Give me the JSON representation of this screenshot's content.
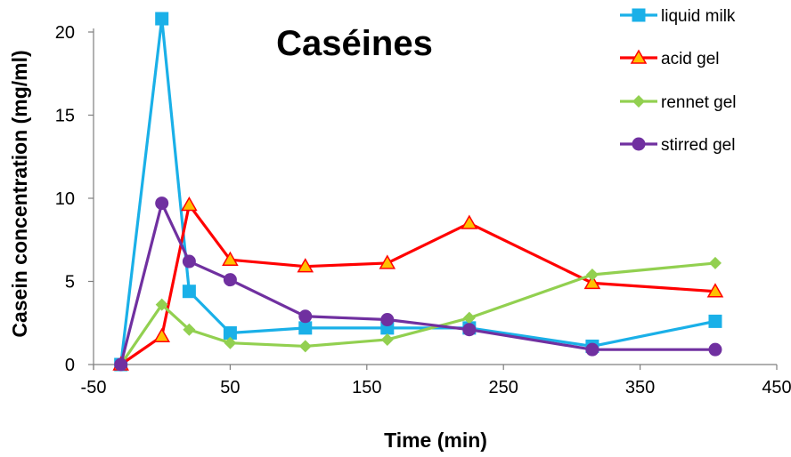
{
  "chart_data": {
    "type": "line",
    "title": "Caséines",
    "xlabel": "Time (min)",
    "ylabel": "Casein concentration (mg/ml)",
    "xlim": [
      -50,
      450
    ],
    "ylim": [
      0,
      21
    ],
    "xticks": [
      -50,
      50,
      150,
      250,
      350,
      450
    ],
    "xtick_labels": [
      "-50",
      "50",
      "150",
      "250",
      "350",
      "450"
    ],
    "yticks": [
      0,
      5,
      10,
      15,
      20
    ],
    "ytick_labels": [
      "0",
      "5",
      "10",
      "15",
      "20"
    ],
    "grid": false,
    "legend_position": "top-right",
    "series": [
      {
        "name": "liquid milk",
        "color": "#1AB0E8",
        "marker": "square",
        "x": [
          -30,
          0,
          20,
          50,
          105,
          165,
          225,
          315,
          405
        ],
        "y": [
          0,
          20.8,
          4.4,
          1.9,
          2.2,
          2.2,
          2.2,
          1.1,
          2.6
        ]
      },
      {
        "name": "acid gel",
        "color": "#FF0000",
        "marker": "triangle",
        "marker_fill": "#FFC000",
        "x": [
          -30,
          0,
          20,
          50,
          105,
          165,
          225,
          315,
          405
        ],
        "y": [
          0,
          1.7,
          9.6,
          6.3,
          5.9,
          6.1,
          8.5,
          4.9,
          4.4
        ]
      },
      {
        "name": "rennet gel",
        "color": "#92D050",
        "marker": "diamond",
        "x": [
          -30,
          0,
          20,
          50,
          105,
          165,
          225,
          315,
          405
        ],
        "y": [
          0,
          3.6,
          2.1,
          1.3,
          1.1,
          1.5,
          2.8,
          5.4,
          6.1
        ]
      },
      {
        "name": "stirred gel",
        "color": "#7030A0",
        "marker": "circle",
        "x": [
          -30,
          0,
          20,
          50,
          105,
          165,
          225,
          315,
          405
        ],
        "y": [
          0,
          9.7,
          6.2,
          5.1,
          2.9,
          2.7,
          2.1,
          0.9,
          0.9
        ]
      }
    ]
  }
}
